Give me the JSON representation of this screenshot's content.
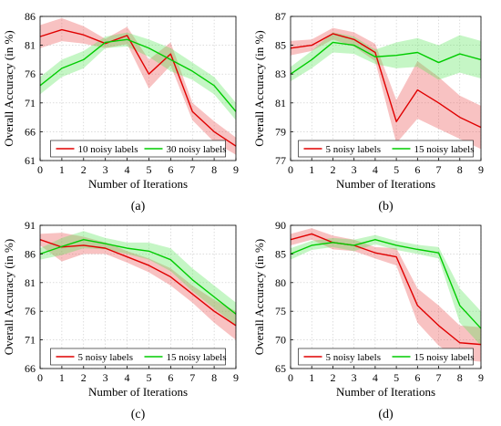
{
  "chart_data": [
    {
      "type": "line",
      "panel_label": "(a)",
      "xlabel": "Number of Iterations",
      "ylabel": "Overall Accuracy (in %)",
      "xlim": [
        0,
        9
      ],
      "ylim": [
        61,
        86
      ],
      "xticks": [
        "0",
        "1",
        "2",
        "3",
        "4",
        "5",
        "6",
        "7",
        "8",
        "9"
      ],
      "yticks": [
        "61",
        "66",
        "71",
        "76",
        "81",
        "86"
      ],
      "grid": true,
      "legend_position": "bottom",
      "x": [
        0,
        1,
        2,
        3,
        4,
        5,
        6,
        7,
        8,
        9
      ],
      "series": [
        {
          "name": "10 noisy labels",
          "color": "#e00000",
          "values": [
            82.5,
            83.7,
            82.8,
            81.3,
            82.7,
            76.0,
            79.5,
            69.5,
            66.0,
            63.5
          ],
          "band": [
            2.0,
            2.0,
            1.5,
            0.8,
            1.5,
            2.5,
            2.0,
            1.5,
            1.8,
            1.5
          ]
        },
        {
          "name": "30 noisy labels",
          "color": "#00cc00",
          "values": [
            74.0,
            77.0,
            78.5,
            81.5,
            82.0,
            80.5,
            78.5,
            76.5,
            74.0,
            69.5
          ],
          "band": [
            1.5,
            1.5,
            1.5,
            1.0,
            1.2,
            1.5,
            2.0,
            1.5,
            1.5,
            1.5
          ]
        }
      ]
    },
    {
      "type": "line",
      "panel_label": "(b)",
      "xlabel": "Number of Iterations",
      "ylabel": "Overall Accuracy (in %)",
      "xlim": [
        0,
        9
      ],
      "ylim": [
        77,
        87
      ],
      "xticks": [
        "0",
        "1",
        "2",
        "3",
        "4",
        "5",
        "6",
        "7",
        "8",
        "9"
      ],
      "yticks": [
        "77",
        "79",
        "81",
        "83",
        "85",
        "87"
      ],
      "grid": true,
      "legend_position": "bottom",
      "x": [
        0,
        1,
        2,
        3,
        4,
        5,
        6,
        7,
        8,
        9
      ],
      "series": [
        {
          "name": "5 noisy labels",
          "color": "#e00000",
          "values": [
            84.8,
            85.0,
            85.8,
            85.4,
            84.5,
            79.7,
            81.9,
            81.0,
            80.0,
            79.3
          ],
          "band": [
            0.5,
            0.4,
            0.4,
            0.5,
            0.6,
            1.5,
            2.0,
            1.8,
            1.5,
            1.5
          ]
        },
        {
          "name": "15 noisy labels",
          "color": "#00cc00",
          "values": [
            83.0,
            84.0,
            85.2,
            85.0,
            84.2,
            84.3,
            84.5,
            83.8,
            84.4,
            84.0
          ],
          "band": [
            0.5,
            0.6,
            0.7,
            0.6,
            0.5,
            0.9,
            1.0,
            1.2,
            1.3,
            1.3
          ]
        }
      ]
    },
    {
      "type": "line",
      "panel_label": "(c)",
      "xlabel": "Number of Iterations",
      "ylabel": "Overall Accuracy (in %)",
      "xlim": [
        0,
        9
      ],
      "ylim": [
        66,
        91
      ],
      "xticks": [
        "0",
        "1",
        "2",
        "3",
        "4",
        "5",
        "6",
        "7",
        "8",
        "9"
      ],
      "yticks": [
        "66",
        "71",
        "76",
        "81",
        "86",
        "91"
      ],
      "grid": true,
      "legend_position": "bottom",
      "x": [
        0,
        1,
        2,
        3,
        4,
        5,
        6,
        7,
        8,
        9
      ],
      "series": [
        {
          "name": "5 noisy labels",
          "color": "#e00000",
          "values": [
            88.5,
            87.2,
            87.5,
            87.0,
            85.5,
            84.0,
            82.0,
            79.0,
            76.0,
            73.5
          ],
          "band": [
            1.0,
            2.5,
            1.5,
            1.0,
            1.0,
            1.2,
            1.5,
            1.5,
            2.0,
            2.5
          ]
        },
        {
          "name": "15 noisy labels",
          "color": "#00cc00",
          "values": [
            86.0,
            87.3,
            88.5,
            87.8,
            87.0,
            86.5,
            85.0,
            81.5,
            78.5,
            75.5
          ],
          "band": [
            1.0,
            1.5,
            1.5,
            1.0,
            1.0,
            1.5,
            2.0,
            2.0,
            2.0,
            2.0
          ]
        }
      ]
    },
    {
      "type": "line",
      "panel_label": "(d)",
      "xlabel": "Number of Iterations",
      "ylabel": "Overall Accuracy (in %)",
      "xlim": [
        0,
        9
      ],
      "ylim": [
        65,
        90
      ],
      "xticks": [
        "0",
        "1",
        "2",
        "3",
        "4",
        "5",
        "6",
        "7",
        "8",
        "9"
      ],
      "yticks": [
        "65",
        "70",
        "75",
        "80",
        "85",
        "90"
      ],
      "grid": true,
      "legend_position": "bottom",
      "x": [
        0,
        1,
        2,
        3,
        4,
        5,
        6,
        7,
        8,
        9
      ],
      "series": [
        {
          "name": "5 noisy labels",
          "color": "#e00000",
          "values": [
            87.5,
            88.5,
            87.0,
            86.5,
            85.2,
            84.5,
            76.0,
            72.5,
            69.5,
            69.2
          ],
          "band": [
            1.0,
            1.0,
            1.2,
            1.0,
            1.0,
            1.5,
            3.0,
            3.5,
            3.0,
            3.0
          ]
        },
        {
          "name": "15 noisy labels",
          "color": "#00cc00",
          "values": [
            85.0,
            86.5,
            87.0,
            86.5,
            87.5,
            86.5,
            85.8,
            85.2,
            76.0,
            72.0
          ],
          "band": [
            1.0,
            0.8,
            0.8,
            1.0,
            0.8,
            0.8,
            0.8,
            1.0,
            3.0,
            3.0
          ]
        }
      ]
    }
  ]
}
